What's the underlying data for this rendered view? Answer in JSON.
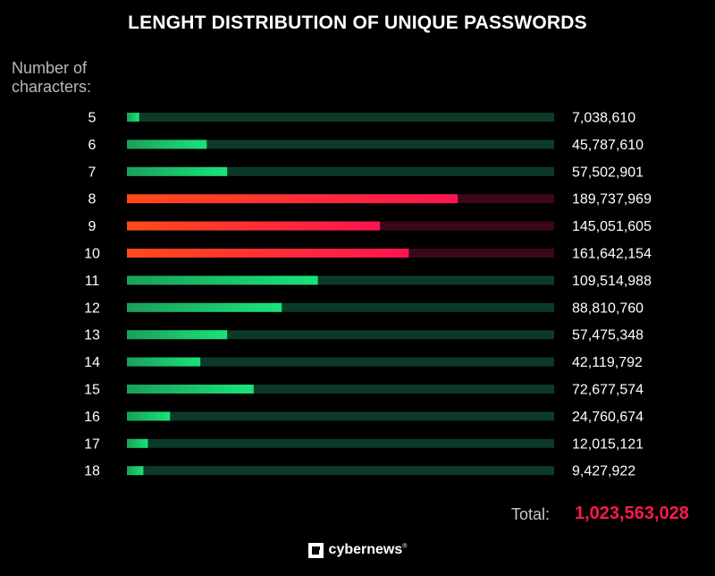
{
  "title": "LENGHT DISTRIBUTION OF UNIQUE PASSWORDS",
  "axis_label_line1": "Number of",
  "axis_label_line2": "characters:",
  "total_label": "Total:",
  "total_value": "1,023,563,028",
  "brand": {
    "name": "cybernews",
    "reg": "®",
    "icon": "cybernews-logo-icon"
  },
  "colors": {
    "green_bar_start": "#1aa05a",
    "green_bar_end": "#19e37a",
    "green_track": "#0b3a26",
    "red_bar_start": "#ff4a1a",
    "red_bar_end": "#ff1450",
    "red_track": "#3a0818",
    "total": "#ff1a4a"
  },
  "chart_data": {
    "type": "bar",
    "orientation": "horizontal",
    "categories": [
      "5",
      "6",
      "7",
      "8",
      "9",
      "10",
      "11",
      "12",
      "13",
      "14",
      "15",
      "16",
      "17",
      "18"
    ],
    "values": [
      7038610,
      45787610,
      57502901,
      189737969,
      145051605,
      161642154,
      109514988,
      88810760,
      57475348,
      42119792,
      72677574,
      24760674,
      12015121,
      9427922
    ],
    "value_labels": [
      "7,038,610",
      "45,787,610",
      "57,502,901",
      "189,737,969",
      "145,051,605",
      "161,642,154",
      "109,514,988",
      "88,810,760",
      "57,475,348",
      "42,119,792",
      "72,677,574",
      "24,760,674",
      "12,015,121",
      "9,427,922"
    ],
    "highlighted": [
      "8",
      "9",
      "10"
    ],
    "xlim": [
      0,
      245000000
    ],
    "ylabel": "Number of characters:",
    "title": "LENGHT DISTRIBUTION OF UNIQUE PASSWORDS"
  }
}
